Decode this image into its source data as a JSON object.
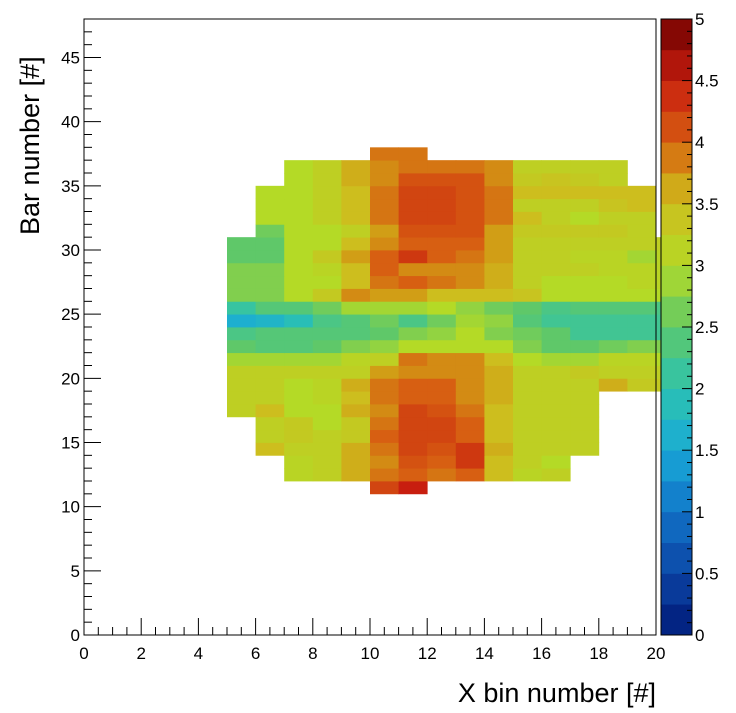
{
  "chart_data": {
    "type": "heatmap",
    "title": "",
    "xlabel": "X bin number [#]",
    "ylabel": "Bar number [#]",
    "xlim": [
      0,
      20
    ],
    "ylim": [
      0,
      48
    ],
    "zlim": [
      0,
      5
    ],
    "x_ticks": [
      0,
      2,
      4,
      6,
      8,
      10,
      12,
      14,
      16,
      18,
      20
    ],
    "y_ticks": [
      0,
      5,
      10,
      15,
      20,
      25,
      30,
      35,
      40,
      45
    ],
    "z_ticks": [
      0,
      0.5,
      1,
      1.5,
      2,
      2.5,
      3,
      3.5,
      4,
      4.5,
      5
    ],
    "x_tick_labels": [
      "0",
      "2",
      "4",
      "6",
      "8",
      "10",
      "12",
      "14",
      "16",
      "18",
      "20"
    ],
    "y_tick_labels": [
      "0",
      "5",
      "10",
      "15",
      "20",
      "25",
      "30",
      "35",
      "40",
      "45"
    ],
    "z_tick_labels": [
      "0",
      "0.5",
      "1",
      "1.5",
      "2",
      "2.5",
      "3",
      "3.5",
      "4",
      "4.5",
      "5"
    ],
    "grid": false,
    "colormap": "rainbow (dark blue → cyan → green → yellow → orange → red → dark red)",
    "colorbar_placement": "right",
    "x_bin_width": 1,
    "y_bin_height": 1,
    "rows": [
      {
        "y": 11,
        "x_start": 10,
        "z": [
          4.2,
          4.5
        ]
      },
      {
        "y": 12,
        "x_start": 7,
        "z": [
          3.1,
          3.2,
          3.6,
          3.9,
          4.0,
          3.9,
          4.0,
          3.5,
          3.1,
          3.2
        ]
      },
      {
        "y": 13,
        "x_start": 7,
        "z": [
          3.1,
          3.2,
          3.6,
          3.8,
          4.1,
          4.0,
          4.3,
          3.5,
          3.2,
          3.0
        ]
      },
      {
        "y": 14,
        "x_start": 6,
        "z": [
          3.5,
          3.2,
          3.2,
          3.6,
          3.9,
          4.2,
          4.1,
          4.3,
          3.6,
          3.2,
          3.2,
          3.2
        ]
      },
      {
        "y": 15,
        "x_start": 6,
        "z": [
          3.2,
          3.3,
          3.2,
          3.3,
          4.0,
          4.2,
          4.2,
          4.0,
          3.5,
          3.2,
          3.2,
          3.2
        ]
      },
      {
        "y": 16,
        "x_start": 6,
        "z": [
          3.2,
          3.3,
          3.0,
          3.3,
          3.9,
          4.2,
          4.2,
          4.0,
          3.5,
          3.2,
          3.2,
          3.2
        ]
      },
      {
        "y": 17,
        "x_start": 5,
        "z": [
          3.2,
          3.5,
          3.0,
          3.0,
          3.6,
          3.8,
          4.2,
          4.1,
          3.9,
          3.5,
          3.2,
          3.2,
          3.2
        ]
      },
      {
        "y": 18,
        "x_start": 5,
        "z": [
          3.2,
          3.2,
          3.0,
          3.1,
          3.5,
          3.9,
          4.0,
          4.0,
          3.8,
          3.6,
          3.2,
          3.2,
          3.2
        ]
      },
      {
        "y": 19,
        "x_start": 5,
        "z": [
          3.2,
          3.2,
          3.0,
          3.1,
          3.6,
          3.9,
          4.0,
          4.0,
          3.8,
          3.6,
          3.2,
          3.2,
          3.2,
          3.6,
          3.3,
          3.3
        ]
      },
      {
        "y": 20,
        "x_start": 5,
        "z": [
          3.2,
          3.2,
          3.2,
          3.2,
          3.2,
          3.7,
          3.8,
          3.8,
          3.8,
          3.6,
          3.2,
          3.2,
          3.3,
          3.2,
          3.2,
          3.2
        ]
      },
      {
        "y": 21,
        "x_start": 5,
        "z": [
          2.9,
          2.9,
          2.9,
          2.9,
          3.1,
          3.2,
          3.9,
          3.8,
          3.8,
          3.5,
          3.0,
          2.9,
          2.9,
          3.1,
          3.1,
          3.0
        ]
      },
      {
        "y": 22,
        "x_start": 5,
        "z": [
          2.5,
          2.4,
          2.4,
          2.5,
          2.7,
          2.8,
          3.0,
          3.0,
          3.0,
          3.0,
          2.7,
          2.5,
          2.5,
          2.6,
          2.7,
          2.7
        ]
      },
      {
        "y": 23,
        "x_start": 5,
        "z": [
          2.3,
          2.4,
          2.4,
          2.4,
          2.4,
          2.5,
          2.7,
          2.8,
          3.0,
          2.7,
          2.6,
          2.5,
          2.2,
          2.2,
          2.2,
          2.2
        ]
      },
      {
        "y": 24,
        "x_start": 5,
        "z": [
          1.6,
          1.7,
          1.9,
          2.3,
          2.4,
          2.6,
          2.3,
          2.6,
          2.9,
          2.8,
          2.4,
          2.2,
          2.2,
          2.2,
          2.2,
          2.2
        ]
      },
      {
        "y": 25,
        "x_start": 5,
        "z": [
          2.1,
          2.4,
          2.4,
          2.6,
          2.9,
          2.9,
          2.9,
          3.0,
          2.8,
          2.6,
          2.5,
          2.3,
          2.4,
          2.4,
          2.4,
          2.3
        ]
      },
      {
        "y": 26,
        "x_start": 5,
        "z": [
          2.7,
          2.7,
          3.0,
          3.3,
          3.8,
          3.7,
          3.7,
          3.5,
          3.5,
          3.5,
          3.4,
          3.0,
          3.0,
          3.0,
          3.0,
          3.0
        ]
      },
      {
        "y": 27,
        "x_start": 5,
        "z": [
          2.7,
          2.7,
          3.0,
          3.0,
          3.5,
          3.9,
          4.0,
          3.9,
          3.8,
          3.6,
          3.2,
          3.0,
          3.0,
          3.0,
          3.1,
          3.1
        ]
      },
      {
        "y": 28,
        "x_start": 5,
        "z": [
          2.7,
          2.7,
          3.0,
          3.1,
          3.5,
          4.0,
          3.8,
          3.8,
          3.8,
          3.6,
          3.2,
          3.2,
          3.2,
          3.1,
          3.1,
          3.1
        ]
      },
      {
        "y": 29,
        "x_start": 5,
        "z": [
          2.5,
          2.5,
          3.0,
          3.3,
          3.7,
          4.0,
          4.3,
          4.0,
          3.9,
          3.7,
          3.2,
          3.2,
          3.1,
          3.1,
          2.9,
          3.1
        ]
      },
      {
        "y": 30,
        "x_start": 5,
        "z": [
          2.5,
          2.5,
          3.0,
          3.0,
          3.5,
          3.8,
          4.0,
          4.0,
          4.0,
          3.7,
          3.2,
          3.2,
          3.2,
          3.2,
          3.2,
          3.2
        ]
      },
      {
        "y": 31,
        "x_start": 6,
        "z": [
          2.6,
          3.0,
          3.0,
          3.2,
          3.7,
          4.1,
          4.1,
          4.1,
          3.7,
          3.3,
          3.3,
          3.3,
          3.3,
          3.2
        ]
      },
      {
        "y": 32,
        "x_start": 6,
        "z": [
          3.0,
          3.0,
          3.2,
          3.5,
          3.9,
          4.2,
          4.2,
          4.1,
          3.9,
          3.5,
          3.2,
          3.0,
          3.2,
          3.2
        ]
      },
      {
        "y": 33,
        "x_start": 6,
        "z": [
          3.0,
          3.0,
          3.2,
          3.5,
          3.9,
          4.2,
          4.2,
          4.1,
          3.9,
          3.2,
          3.2,
          3.2,
          3.4,
          3.5
        ]
      },
      {
        "y": 34,
        "x_start": 6,
        "z": [
          3.0,
          3.0,
          3.2,
          3.5,
          3.9,
          4.2,
          4.2,
          4.1,
          3.9,
          3.5,
          3.5,
          3.5,
          3.5,
          3.5
        ]
      },
      {
        "y": 35,
        "x_start": 7,
        "z": [
          3.0,
          3.2,
          3.6,
          3.8,
          4.1,
          4.1,
          4.1,
          3.8,
          3.3,
          3.4,
          3.3,
          3.2
        ]
      },
      {
        "y": 36,
        "x_start": 7,
        "z": [
          3.0,
          3.2,
          3.6,
          3.8,
          3.9,
          3.9,
          3.9,
          3.8,
          3.2,
          3.2,
          3.2,
          3.2
        ]
      },
      {
        "y": 37,
        "x_start": 10,
        "z": [
          3.9,
          3.9
        ]
      }
    ]
  }
}
